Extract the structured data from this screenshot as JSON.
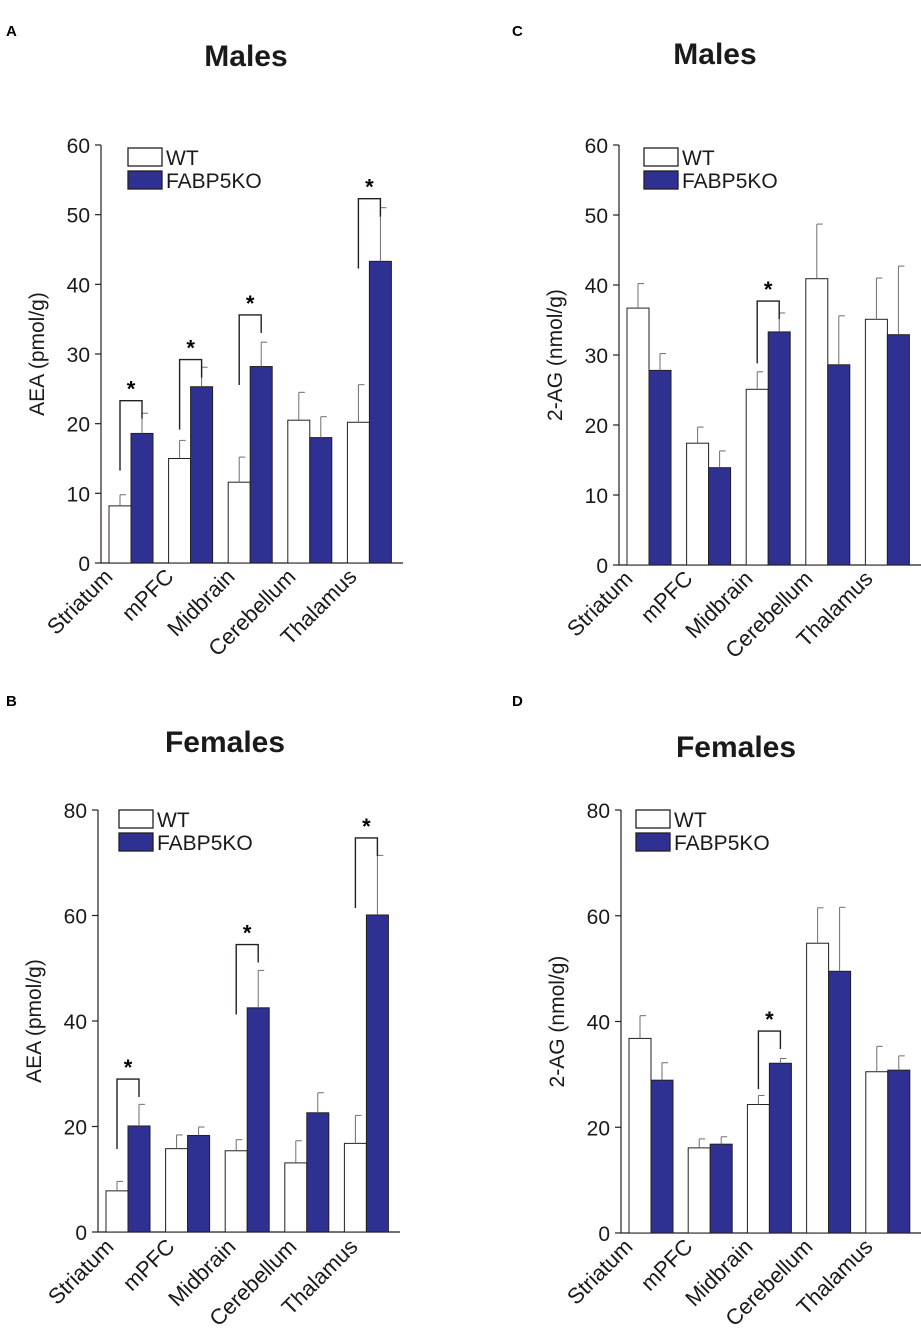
{
  "figure": {
    "colors": {
      "wt_fill": "#ffffff",
      "ko_fill": "#2e3192",
      "stroke": "#231f20"
    }
  },
  "chart_data": [
    {
      "type": "bar",
      "panel_label": "A",
      "title": "Males",
      "xlabel": "",
      "ylabel": "AEA (pmol/g)",
      "ylim": [
        0,
        60
      ],
      "yticks": [
        "0",
        "10",
        "20",
        "30",
        "40",
        "50",
        "60"
      ],
      "categories": [
        "Striatum",
        "mPFC",
        "Midbrain",
        "Cerebellum",
        "Thalamus"
      ],
      "legend": {
        "position": "top-left",
        "entries": [
          "WT",
          "FABP5KO"
        ]
      },
      "series": [
        {
          "name": "WT",
          "color": "#ffffff",
          "values": [
            8.2,
            15.0,
            11.6,
            20.5,
            20.2
          ],
          "errors": [
            1.6,
            2.6,
            3.6,
            4.0,
            5.4
          ]
        },
        {
          "name": "FABP5KO",
          "color": "#2e3192",
          "values": [
            18.6,
            25.3,
            28.2,
            18.0,
            43.3
          ],
          "errors": [
            2.9,
            2.8,
            3.5,
            3.0,
            7.7
          ]
        }
      ],
      "significance": [
        {
          "category_index": 0,
          "label": "*",
          "height": 23.3
        },
        {
          "category_index": 1,
          "label": "*",
          "height": 29.2
        },
        {
          "category_index": 2,
          "label": "*",
          "height": 35.6
        },
        {
          "category_index": 4,
          "label": "*",
          "height": 52.3
        }
      ]
    },
    {
      "type": "bar",
      "panel_label": "B",
      "title": "Females",
      "xlabel": "",
      "ylabel": "AEA (pmol/g)",
      "ylim": [
        0,
        80
      ],
      "yticks": [
        "0",
        "20",
        "40",
        "60",
        "80"
      ],
      "categories": [
        "Striatum",
        "mPFC",
        "Midbrain",
        "Cerebellum",
        "Thalamus"
      ],
      "legend": {
        "position": "top-left",
        "entries": [
          "WT",
          "FABP5KO"
        ]
      },
      "series": [
        {
          "name": "WT",
          "color": "#ffffff",
          "values": [
            7.8,
            15.8,
            15.4,
            13.1,
            16.8
          ],
          "errors": [
            1.8,
            2.6,
            2.1,
            4.2,
            5.3
          ]
        },
        {
          "name": "FABP5KO",
          "color": "#2e3192",
          "values": [
            20.1,
            18.3,
            42.5,
            22.6,
            60.1
          ],
          "errors": [
            4.1,
            1.6,
            7.1,
            3.8,
            11.3
          ]
        }
      ],
      "significance": [
        {
          "category_index": 0,
          "label": "*",
          "height": 29.0
        },
        {
          "category_index": 2,
          "label": "*",
          "height": 54.5
        },
        {
          "category_index": 4,
          "label": "*",
          "height": 74.7
        }
      ]
    },
    {
      "type": "bar",
      "panel_label": "C",
      "title": "Males",
      "xlabel": "",
      "ylabel": "2-AG (nmol/g)",
      "ylim": [
        0,
        60
      ],
      "yticks": [
        "0",
        "10",
        "20",
        "30",
        "40",
        "50",
        "60"
      ],
      "categories": [
        "Striatum",
        "mPFC",
        "Midbrain",
        "Cerebellum",
        "Thalamus"
      ],
      "legend": {
        "position": "top-left",
        "entries": [
          "WT",
          "FABP5KO"
        ]
      },
      "series": [
        {
          "name": "WT",
          "color": "#ffffff",
          "values": [
            36.7,
            17.4,
            25.1,
            40.9,
            35.1
          ],
          "errors": [
            3.5,
            2.3,
            2.5,
            7.8,
            5.9
          ]
        },
        {
          "name": "FABP5KO",
          "color": "#2e3192",
          "values": [
            27.8,
            13.9,
            33.3,
            28.6,
            32.9
          ],
          "errors": [
            2.4,
            2.4,
            2.7,
            7.0,
            9.8
          ]
        }
      ],
      "significance": [
        {
          "category_index": 2,
          "label": "*",
          "height": 37.7
        }
      ]
    },
    {
      "type": "bar",
      "panel_label": "D",
      "title": "Females",
      "xlabel": "",
      "ylabel": "2-AG (nmol/g)",
      "ylim": [
        0,
        80
      ],
      "yticks": [
        "0",
        "20",
        "40",
        "60",
        "80"
      ],
      "categories": [
        "Striatum",
        "mPFC",
        "Midbrain",
        "Cerebellum",
        "Thalamus"
      ],
      "legend": {
        "position": "top-left",
        "entries": [
          "WT",
          "FABP5KO"
        ]
      },
      "series": [
        {
          "name": "WT",
          "color": "#ffffff",
          "values": [
            36.8,
            16.1,
            24.3,
            54.8,
            30.5
          ],
          "errors": [
            4.3,
            1.7,
            1.7,
            6.7,
            4.8
          ]
        },
        {
          "name": "FABP5KO",
          "color": "#2e3192",
          "values": [
            28.9,
            16.8,
            32.1,
            49.5,
            30.8
          ],
          "errors": [
            3.3,
            1.4,
            0.9,
            12.1,
            2.7
          ]
        }
      ],
      "significance": [
        {
          "category_index": 2,
          "label": "*",
          "height": 38.2
        }
      ]
    }
  ]
}
